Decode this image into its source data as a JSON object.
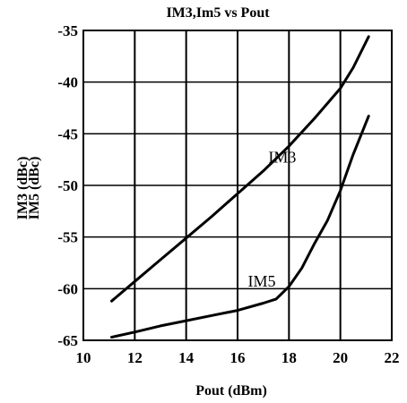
{
  "chart_data": {
    "type": "line",
    "title": "IM3,Im5 vs Pout",
    "xlabel": "Pout (dBm)",
    "ylabel_lines": [
      "IM3 (dBc)",
      "IM5 (dBc)"
    ],
    "xlim": [
      10,
      22
    ],
    "ylim": [
      -65,
      -35
    ],
    "xticks": [
      10,
      12,
      14,
      16,
      18,
      20,
      22
    ],
    "yticks": [
      -35,
      -40,
      -45,
      -50,
      -55,
      -60,
      -65
    ],
    "grid": true,
    "series": [
      {
        "name": "IM3",
        "color": "#000000",
        "x": [
          11.1,
          12,
          13,
          14,
          15,
          16,
          17,
          18,
          19,
          20,
          20.5,
          21.1
        ],
        "y": [
          -61.2,
          -59.3,
          -57.2,
          -55.1,
          -53.0,
          -50.8,
          -48.6,
          -46.2,
          -43.5,
          -40.6,
          -38.6,
          -35.6
        ]
      },
      {
        "name": "IM5",
        "color": "#000000",
        "x": [
          11.1,
          12,
          13,
          14,
          15,
          16,
          17,
          17.5,
          18,
          18.5,
          19,
          19.5,
          20,
          20.5,
          21.1
        ],
        "y": [
          -64.7,
          -64.2,
          -63.6,
          -63.1,
          -62.6,
          -62.1,
          -61.4,
          -61.0,
          -59.8,
          -58.0,
          -55.6,
          -53.4,
          -50.5,
          -47.0,
          -43.3
        ]
      }
    ],
    "annotations": [
      {
        "text": "IM3",
        "x": 17.2,
        "y": -47.8
      },
      {
        "text": "IM5",
        "x": 16.4,
        "y": -59.8
      }
    ]
  }
}
